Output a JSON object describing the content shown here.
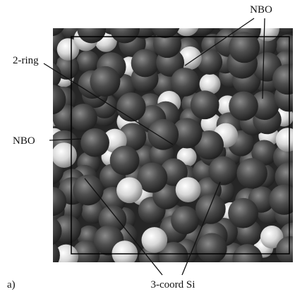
{
  "figure": {
    "panel_label": "a)",
    "annotations": [
      "NBO",
      "2-ring",
      "NBO",
      "3-coord Si"
    ]
  }
}
